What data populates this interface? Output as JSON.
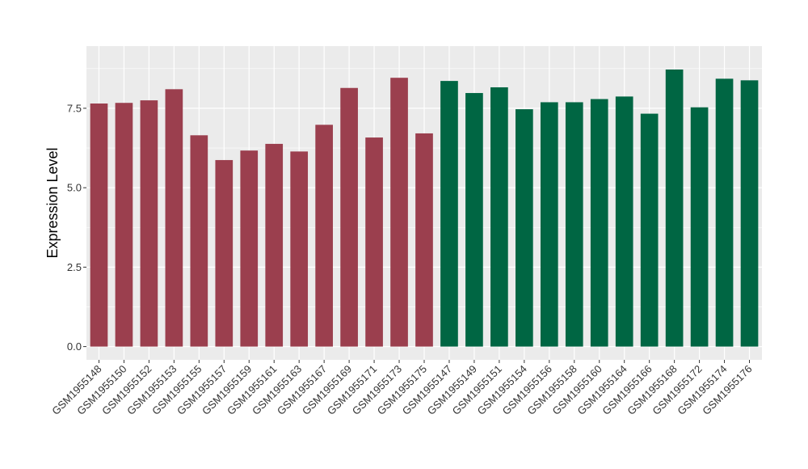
{
  "chart_data": {
    "type": "bar",
    "xlabel": "",
    "ylabel": "Expression Level",
    "ylim": [
      0,
      9.05
    ],
    "yticks": [
      0.0,
      2.5,
      5.0,
      7.5
    ],
    "ytick_labels": [
      "0.0",
      "2.5",
      "5.0",
      "7.5"
    ],
    "grid": true,
    "legend": "none",
    "panel_color": "#ebebeb",
    "gridline_color": "#ffffff",
    "groups": [
      {
        "color": "#9b3f4e",
        "count": 14
      },
      {
        "color": "#006643",
        "count": 13
      }
    ],
    "categories": [
      "GSM1955148",
      "GSM1955150",
      "GSM1955152",
      "GSM1955153",
      "GSM1955155",
      "GSM1955157",
      "GSM1955159",
      "GSM1955161",
      "GSM1955163",
      "GSM1955167",
      "GSM1955169",
      "GSM1955171",
      "GSM1955173",
      "GSM1955175",
      "GSM1955147",
      "GSM1955149",
      "GSM1955151",
      "GSM1955154",
      "GSM1955156",
      "GSM1955158",
      "GSM1955160",
      "GSM1955164",
      "GSM1955166",
      "GSM1955168",
      "GSM1955172",
      "GSM1955174",
      "GSM1955176"
    ],
    "values": [
      7.65,
      7.67,
      7.75,
      8.1,
      6.65,
      5.87,
      6.17,
      6.38,
      6.14,
      6.98,
      8.14,
      6.58,
      8.46,
      6.71,
      8.36,
      7.98,
      8.16,
      7.47,
      7.69,
      7.69,
      7.79,
      7.87,
      7.33,
      8.72,
      7.53,
      8.43,
      8.38
    ]
  }
}
